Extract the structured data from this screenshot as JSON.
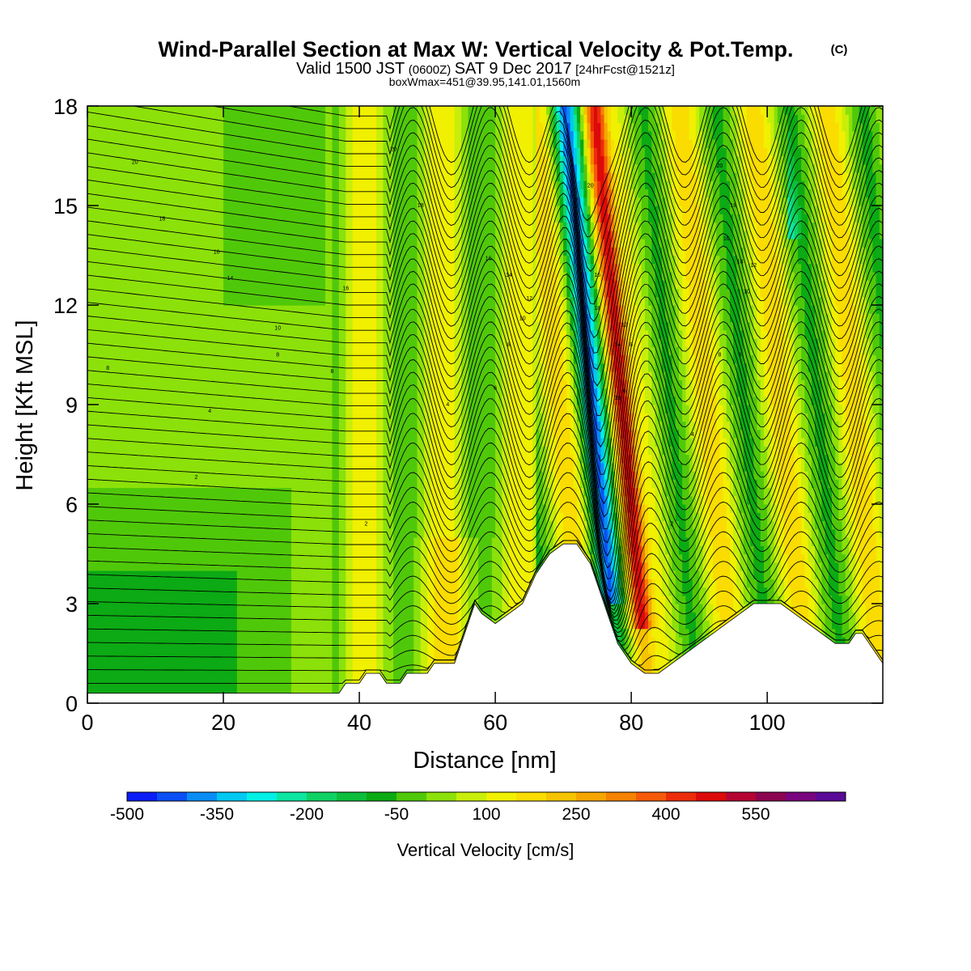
{
  "title": {
    "main": "Wind-Parallel Section at Max W: Vertical Velocity & Pot.Temp.",
    "copyright": "(C)",
    "valid_prefix": "Valid 1500 JST",
    "valid_utc": "(0600Z)",
    "valid_date": "SAT 9 Dec 2017",
    "forecast": "[24hrFcst@1521z]",
    "box_info": "boxWmax=451@39.95,141.01,1560m"
  },
  "chart_data": {
    "type": "heatmap",
    "xlabel": "Distance [nm]",
    "ylabel": "Height [Kft MSL]",
    "xlim": [
      0,
      117
    ],
    "ylim": [
      0,
      18
    ],
    "x_ticks": [
      0,
      20,
      40,
      60,
      80,
      100
    ],
    "y_ticks": [
      0,
      3,
      6,
      9,
      12,
      15,
      18
    ],
    "colorbar": {
      "title": "Vertical Velocity [cm/s]",
      "min": -500,
      "step": 50,
      "tick_labels": [
        "-500",
        "-350",
        "-200",
        "-50",
        "100",
        "250",
        "400",
        "550"
      ],
      "colors": [
        "#0a1ef5",
        "#0a50f5",
        "#0a8cf5",
        "#00c8f0",
        "#00f0e6",
        "#0ce6a0",
        "#10d264",
        "#0cbe3c",
        "#0caa14",
        "#50c80a",
        "#8ce10a",
        "#c8ee0a",
        "#f0f000",
        "#fadc00",
        "#f5c300",
        "#f5a500",
        "#f58200",
        "#f55a0a",
        "#eb2d0a",
        "#dc0a0a",
        "#b40532",
        "#8c0550",
        "#78057d",
        "#5a0a96"
      ]
    },
    "terrain_kft": [
      [
        0,
        0.3
      ],
      [
        5,
        0.3
      ],
      [
        10,
        0.3
      ],
      [
        20,
        0.3
      ],
      [
        30,
        0.3
      ],
      [
        37,
        0.3
      ],
      [
        38,
        0.6
      ],
      [
        40,
        0.6
      ],
      [
        41,
        0.9
      ],
      [
        43,
        0.9
      ],
      [
        44,
        0.6
      ],
      [
        46,
        0.6
      ],
      [
        47,
        0.9
      ],
      [
        50,
        0.9
      ],
      [
        51,
        1.2
      ],
      [
        54,
        1.2
      ],
      [
        55,
        1.8
      ],
      [
        56,
        2.4
      ],
      [
        57,
        3.0
      ],
      [
        58,
        2.7
      ],
      [
        60,
        2.4
      ],
      [
        62,
        2.7
      ],
      [
        64,
        3.0
      ],
      [
        66,
        3.9
      ],
      [
        68,
        4.5
      ],
      [
        70,
        4.8
      ],
      [
        72,
        4.8
      ],
      [
        74,
        4.2
      ],
      [
        75,
        3.6
      ],
      [
        76,
        3.0
      ],
      [
        77,
        2.4
      ],
      [
        78,
        1.8
      ],
      [
        80,
        1.2
      ],
      [
        82,
        0.9
      ],
      [
        84,
        0.9
      ],
      [
        86,
        1.2
      ],
      [
        88,
        1.5
      ],
      [
        90,
        1.8
      ],
      [
        92,
        2.1
      ],
      [
        94,
        2.4
      ],
      [
        96,
        2.7
      ],
      [
        98,
        3.0
      ],
      [
        100,
        3.0
      ],
      [
        102,
        3.0
      ],
      [
        104,
        2.7
      ],
      [
        106,
        2.4
      ],
      [
        108,
        2.1
      ],
      [
        110,
        1.8
      ],
      [
        112,
        1.8
      ],
      [
        113,
        2.1
      ],
      [
        114,
        2.1
      ],
      [
        115,
        1.8
      ],
      [
        116,
        1.5
      ],
      [
        117,
        1.2
      ]
    ],
    "isentrope_labels": [
      {
        "x": 3,
        "y": 10.1,
        "text": "8"
      },
      {
        "x": 7,
        "y": 16.3,
        "text": "20"
      },
      {
        "x": 11,
        "y": 14.6,
        "text": "18"
      },
      {
        "x": 19,
        "y": 13.6,
        "text": "16"
      },
      {
        "x": 21,
        "y": 12.8,
        "text": "14"
      },
      {
        "x": 28,
        "y": 11.3,
        "text": "10"
      },
      {
        "x": 28,
        "y": 10.5,
        "text": "8"
      },
      {
        "x": 18,
        "y": 8.8,
        "text": "4"
      },
      {
        "x": 16,
        "y": 6.8,
        "text": "2"
      },
      {
        "x": 38,
        "y": 12.5,
        "text": "16"
      },
      {
        "x": 36,
        "y": 10.0,
        "text": "8"
      },
      {
        "x": 41,
        "y": 5.4,
        "text": "2"
      },
      {
        "x": 45,
        "y": 16.7,
        "text": "20"
      },
      {
        "x": 49,
        "y": 15.0,
        "text": "18"
      },
      {
        "x": 59,
        "y": 13.4,
        "text": "16"
      },
      {
        "x": 62,
        "y": 12.9,
        "text": "14"
      },
      {
        "x": 65,
        "y": 12.2,
        "text": "12"
      },
      {
        "x": 64,
        "y": 11.6,
        "text": "10"
      },
      {
        "x": 62,
        "y": 10.8,
        "text": "8"
      },
      {
        "x": 60,
        "y": 9.5,
        "text": "6"
      },
      {
        "x": 53,
        "y": 9.0,
        "text": "4"
      },
      {
        "x": 74,
        "y": 15.6,
        "text": "20"
      },
      {
        "x": 75,
        "y": 12.9,
        "text": "16"
      },
      {
        "x": 75,
        "y": 11.9,
        "text": "18"
      },
      {
        "x": 79,
        "y": 11.4,
        "text": "12"
      },
      {
        "x": 78,
        "y": 10.8,
        "text": "14"
      },
      {
        "x": 80,
        "y": 10.8,
        "text": "8"
      },
      {
        "x": 78,
        "y": 9.2,
        "text": "10"
      },
      {
        "x": 79,
        "y": 9.4,
        "text": "6"
      },
      {
        "x": 75,
        "y": 6.0,
        "text": "4"
      },
      {
        "x": 86,
        "y": 5.4,
        "text": "2"
      },
      {
        "x": 93,
        "y": 16.2,
        "text": "20"
      },
      {
        "x": 95,
        "y": 15.0,
        "text": "18"
      },
      {
        "x": 94,
        "y": 14.0,
        "text": "16"
      },
      {
        "x": 96,
        "y": 13.3,
        "text": "14"
      },
      {
        "x": 98,
        "y": 13.2,
        "text": "12"
      },
      {
        "x": 97,
        "y": 12.4,
        "text": "10"
      },
      {
        "x": 93,
        "y": 10.5,
        "text": "8"
      },
      {
        "x": 96,
        "y": 10.5,
        "text": "6"
      },
      {
        "x": 89,
        "y": 8.1,
        "text": "4"
      }
    ]
  }
}
